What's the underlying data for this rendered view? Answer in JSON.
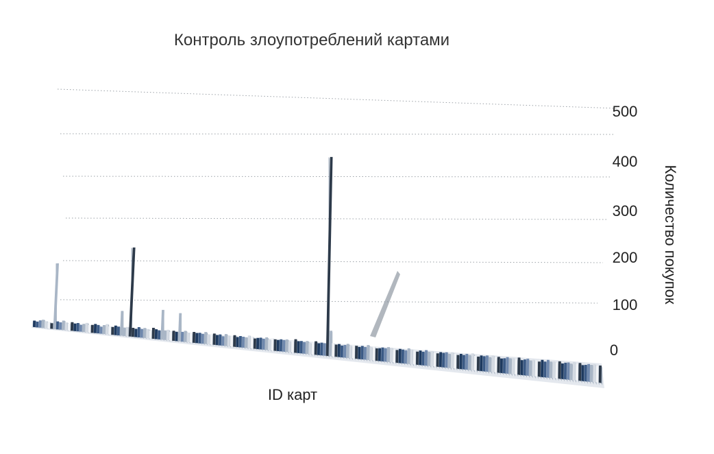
{
  "chart_data": {
    "type": "bar",
    "title": "Контроль злоупотреблений картами",
    "xlabel": "ID карт",
    "ylabel": "Количество покупок",
    "ylim": [
      0,
      500
    ],
    "yticks": [
      "0",
      "100",
      "200",
      "300",
      "400",
      "500"
    ],
    "grid": true,
    "style": "3d-perspective",
    "colors": {
      "palette": [
        "#1e3a5f",
        "#3b5a85",
        "#6f88ad",
        "#a9b6c6",
        "#d5dbe3",
        "#f1f3f6",
        "#2d3a4a"
      ],
      "highlight": "#2d3a4a"
    },
    "series": [
      {
        "values": [
          8,
          6,
          10,
          12,
          9,
          7,
          5,
          160,
          11,
          9,
          14,
          10,
          8,
          12,
          9,
          11,
          7,
          10,
          13,
          8,
          9,
          12,
          10,
          6,
          11,
          14,
          9,
          8,
          12,
          10,
          50,
          9,
          11,
          210,
          10,
          8,
          13,
          9,
          12,
          10,
          7,
          14,
          11,
          9,
          60,
          10,
          12,
          8,
          11,
          9,
          55,
          10,
          13,
          9,
          8,
          12,
          10,
          11,
          9,
          14,
          8,
          10,
          12,
          9,
          11,
          7,
          13,
          10,
          9,
          12,
          8,
          11,
          10,
          9,
          14,
          12,
          8,
          10,
          11,
          9,
          13,
          8,
          12,
          10,
          9,
          11,
          10,
          12,
          8,
          9,
          14,
          10,
          11,
          9,
          12,
          8,
          10,
          13,
          9,
          11,
          10,
          440,
          40,
          12,
          9,
          11,
          8,
          10,
          13,
          9,
          12,
          10,
          8,
          11,
          9,
          14,
          10,
          12,
          8,
          9,
          11,
          10,
          13,
          12,
          9,
          8,
          11,
          10,
          9,
          14,
          12,
          10,
          8,
          11,
          9,
          13,
          10,
          12,
          9,
          8,
          11,
          10,
          12,
          9,
          13,
          10,
          8,
          11,
          9,
          12,
          10,
          14,
          9,
          8,
          11,
          10,
          12,
          9,
          13,
          10,
          11,
          8,
          9,
          12,
          10,
          11,
          9,
          13,
          8,
          10,
          12,
          9,
          11,
          10,
          8,
          12,
          9,
          13,
          10,
          11,
          9,
          12,
          8,
          10,
          11,
          9,
          13,
          10,
          12,
          8,
          9,
          11,
          10,
          12,
          9,
          10
        ]
      }
    ]
  }
}
